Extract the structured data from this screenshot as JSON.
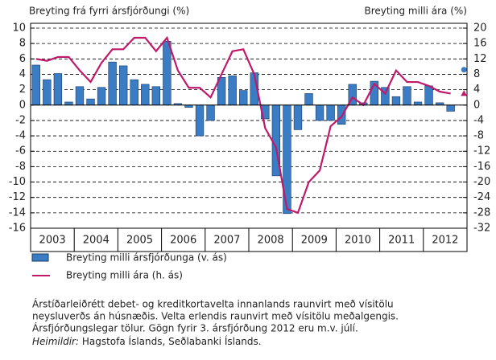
{
  "chart_data": {
    "type": "bar_line",
    "left_axis_title": "Breyting frá fyrri ársfjórðungi (%)",
    "right_axis_title": "Breyting milli ára (%)",
    "categories": [
      "2003",
      null,
      null,
      null,
      "2004",
      null,
      null,
      null,
      "2005",
      null,
      null,
      null,
      "2006",
      null,
      null,
      null,
      "2007",
      null,
      null,
      null,
      "2008",
      null,
      null,
      null,
      "2009",
      null,
      null,
      null,
      "2010",
      null,
      null,
      null,
      "2011",
      null,
      null,
      null,
      "2012",
      null,
      null,
      null
    ],
    "series": [
      {
        "name": "Breyting milli ársfjórðunga (v. ás)",
        "type": "bar",
        "axis": "y",
        "color": "#3a7dc4",
        "values": [
          5.2,
          3.3,
          4.1,
          0.4,
          2.4,
          0.8,
          2.3,
          5.6,
          5.1,
          3.3,
          2.7,
          2.4,
          8.3,
          0.2,
          -0.3,
          -4.0,
          -2.0,
          3.6,
          3.8,
          1.9,
          4.2,
          -1.8,
          -9.2,
          -14.1,
          -3.2,
          1.5,
          -2.0,
          -2.0,
          -2.5,
          2.7,
          0.3,
          3.1,
          2.3,
          1.1,
          2.4,
          0.4,
          2.5,
          0.3,
          -0.8,
          null
        ],
        "projection": 4.6
      },
      {
        "name": "Breyting milli ára (h. ás)",
        "type": "line",
        "axis": "y2",
        "color": "#c0186a",
        "values": [
          12,
          11.5,
          12.5,
          12.5,
          9,
          6,
          11,
          14.5,
          14.5,
          17.5,
          17.5,
          14,
          17.5,
          9,
          4.5,
          4.5,
          2,
          8,
          14,
          14.5,
          8,
          -6,
          -11,
          -27,
          -28,
          -20,
          -17,
          -5.5,
          -3,
          2,
          0,
          5.5,
          3,
          9,
          6,
          6,
          5,
          3.5,
          3,
          null
        ],
        "projection": 3
      }
    ],
    "ylim": [
      -16,
      10
    ],
    "yticks": [
      10,
      8,
      6,
      4,
      2,
      0,
      -2,
      -4,
      -6,
      -8,
      -10,
      -12,
      -14,
      -16
    ],
    "y2lim": [
      -32,
      20
    ],
    "y2ticks": [
      20,
      16,
      12,
      8,
      4,
      0,
      -4,
      -8,
      -12,
      -16,
      -20,
      -24,
      -28,
      -32
    ],
    "grid": true,
    "notes": [
      "Árstíðarleiðrétt debet- og kreditkortavelta innanlands raunvirt með vísitölu",
      "neysluverðs án húsnæðis. Velta erlendis raunvirt með vísitölu meðalgengis.",
      "Ársfjórðungslegar tölur. Gögn fyrir 3. ársfjórðung 2012 eru m.v. júlí."
    ],
    "source": {
      "label": "Heimildir:",
      "text": " Hagstofa Íslands, Seðlabanki Íslands."
    }
  }
}
